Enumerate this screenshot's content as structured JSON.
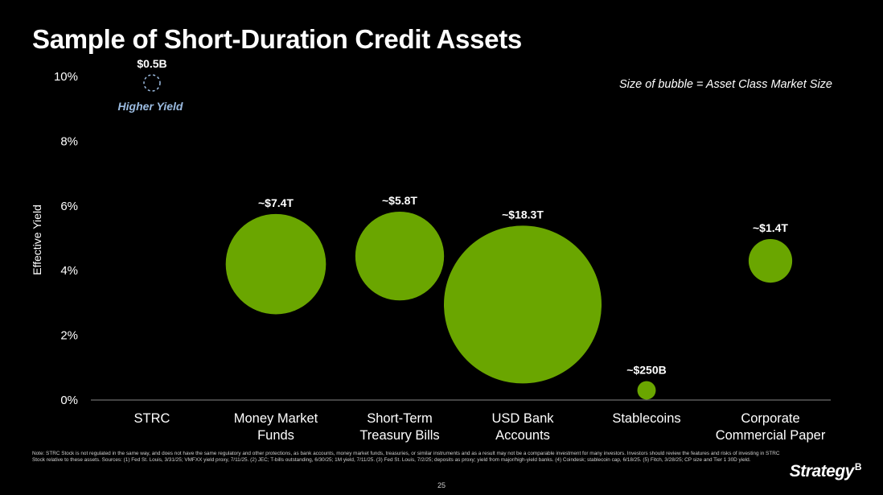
{
  "title": "Sample of Short-Duration Credit Assets",
  "size_note": "Size of bubble = Asset Class Market Size",
  "footnote": "Note: STRC Stock is not regulated in the same way, and does not have the same regulatory and other protections, as bank accounts, money market funds, treasuries, or similar instruments and as a result may not be a comparable investment for many investors. Investors should review the features and risks of investing in STRC Stock relative to these assets. Sources: (1) Fed St. Louis, 3/31/25; VMFXX yield proxy, 7/11/25. (2) JEC; T-bills outstanding, 6/30/25; 1M yield, 7/11/25. (3) Fed St. Louis, 7/2/25; deposits as proxy; yield from major/high-yield banks. (4) Coindesk; stablecoin cap, 6/18/25. (5) Fitch, 3/28/25; CP size and Tier 1 30D yield.",
  "page_number": "25",
  "logo": {
    "text": "Strategy",
    "mark": "B"
  },
  "colors": {
    "bubble": "#6aa600",
    "dashed": "#9bbbe0",
    "annotation": "#9bbbe0",
    "axis": "#888888"
  },
  "chart_data": {
    "type": "scatter",
    "title": "Sample of Short-Duration Credit Assets",
    "ylabel": "Effective Yield",
    "ylim": [
      0,
      10
    ],
    "y_ticks": [
      "0%",
      "2%",
      "4%",
      "6%",
      "8%",
      "10%"
    ],
    "grid": false,
    "categories": [
      [
        "STRC"
      ],
      [
        "Money Market",
        "Funds"
      ],
      [
        "Short-Term",
        "Treasury Bills"
      ],
      [
        "USD Bank",
        "Accounts"
      ],
      [
        "Stablecoins"
      ],
      [
        "Corporate",
        "Commercial Paper"
      ]
    ],
    "points": [
      {
        "category_index": 0,
        "y": 9.8,
        "label": "$0.5B",
        "size_trillions": 0.0005,
        "style": "dashed"
      },
      {
        "category_index": 1,
        "y": 4.2,
        "label": "~$7.4T",
        "size_trillions": 7.4,
        "style": "filled"
      },
      {
        "category_index": 2,
        "y": 4.45,
        "label": "~$5.8T",
        "size_trillions": 5.8,
        "style": "filled"
      },
      {
        "category_index": 3,
        "y": 2.95,
        "label": "~$18.3T",
        "size_trillions": 18.3,
        "style": "filled"
      },
      {
        "category_index": 4,
        "y": 0.3,
        "label": "~$250B",
        "size_trillions": 0.25,
        "style": "filled"
      },
      {
        "category_index": 5,
        "y": 4.3,
        "label": "~$1.4T",
        "size_trillions": 1.4,
        "style": "filled"
      }
    ],
    "annotations": [
      {
        "text": "Higher Yield",
        "category_index": 0
      }
    ]
  }
}
